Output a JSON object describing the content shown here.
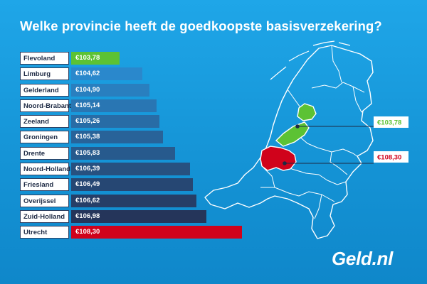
{
  "title": "Welke provincie heeft de goedkoopste basisverzekering?",
  "chart_data": {
    "type": "bar",
    "title": "Welke provincie heeft de goedkoopste basisverzekering?",
    "categories": [
      "Flevoland",
      "Limburg",
      "Gelderland",
      "Noord-Brabant",
      "Zeeland",
      "Groningen",
      "Drente",
      "Noord-Holland",
      "Friesland",
      "Overijssel",
      "Zuid-Holland",
      "Utrecht"
    ],
    "values": [
      103.78,
      104.62,
      104.9,
      105.14,
      105.26,
      105.38,
      105.83,
      106.39,
      106.49,
      106.62,
      106.98,
      108.3
    ],
    "value_labels": [
      "€103,78",
      "€104,62",
      "€104,90",
      "€105,14",
      "€105,26",
      "€105,38",
      "€105,83",
      "€106,39",
      "€106,49",
      "€106,62",
      "€106,98",
      "€108,30"
    ],
    "xlim": [
      102,
      108.3
    ],
    "grid": false,
    "legend": "none"
  },
  "map": {
    "callout_low": "€103,78",
    "callout_high": "€108,30"
  },
  "colors": {
    "lowest": "#5cc234",
    "highest": "#d0021b",
    "bar_light": "#2a88cc",
    "bar_dark": "#25355a"
  },
  "logo": "Geld.nl"
}
